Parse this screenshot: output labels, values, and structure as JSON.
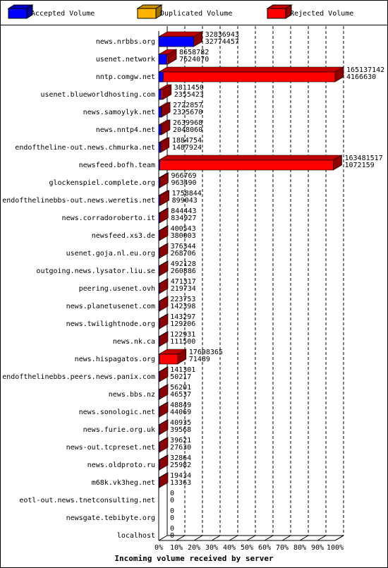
{
  "chart_data": {
    "type": "bar3d",
    "legend": [
      {
        "name": "Accepted Volume",
        "color": "#0000ff"
      },
      {
        "name": "Duplicated Volume",
        "color": "#ffb400"
      },
      {
        "name": "Rejected Volume",
        "color": "#ff0000"
      }
    ],
    "x_label": "Incoming volume received by server",
    "categories": [
      "news.nrbbs.org",
      "usenet.network",
      "nntp.comgw.net",
      "usenet.blueworldhosting.com",
      "news.samoylyk.net",
      "news.nntp4.net",
      "endoftheline-out.news.chmurka.net",
      "newsfeed.bofh.team",
      "glockenspiel.complete.org",
      "endofthelinebbs-out.news.weretis.net",
      "news.corradoroberto.it",
      "newsfeed.xs3.de",
      "usenet.goja.nl.eu.org",
      "outgoing.news.lysator.liu.se",
      "peering.usenet.ovh",
      "news.planetusenet.com",
      "news.twilightnode.org",
      "news.nk.ca",
      "news.hispagatos.org",
      "endofthelinebbs.peers.news.panix.com",
      "news.bbs.nz",
      "news.sonologic.net",
      "news.furie.org.uk",
      "news-out.tcpreset.net",
      "news.oldproto.ru",
      "m68k.vk3heg.net",
      "eotl-out.news.tnetconsulting.net",
      "newsgate.tebibyte.org",
      "localhost"
    ],
    "totals": [
      32836943,
      8658782,
      165137142,
      3811450,
      2722857,
      2639968,
      1884754,
      163481517,
      966769,
      1758844,
      844443,
      400543,
      376344,
      492128,
      471317,
      223753,
      143297,
      122931,
      17698365,
      141301,
      56201,
      48849,
      40935,
      39621,
      32864,
      19434,
      0,
      0,
      0
    ],
    "accepted": [
      32774457,
      7624070,
      4166630,
      2355423,
      2325670,
      2048060,
      1487924,
      1072159,
      963490,
      899043,
      834927,
      380003,
      268706,
      260886,
      219734,
      142398,
      129206,
      111500,
      71489,
      50217,
      46537,
      44069,
      39568,
      27630,
      25982,
      13363,
      0,
      0,
      0
    ],
    "xlim": [
      0,
      100
    ],
    "xticks": [
      {
        "value": 0,
        "label": "0%"
      },
      {
        "value": 10,
        "label": "10%"
      },
      {
        "value": 20,
        "label": "20%"
      },
      {
        "value": 30,
        "label": "30%"
      },
      {
        "value": 40,
        "label": "40%"
      },
      {
        "value": 50,
        "label": "50%"
      },
      {
        "value": 60,
        "label": "60%"
      },
      {
        "value": 70,
        "label": "70%"
      },
      {
        "value": 80,
        "label": "80%"
      },
      {
        "value": 90,
        "label": "90%"
      },
      {
        "value": 100,
        "label": "100%"
      }
    ],
    "grid": true
  }
}
